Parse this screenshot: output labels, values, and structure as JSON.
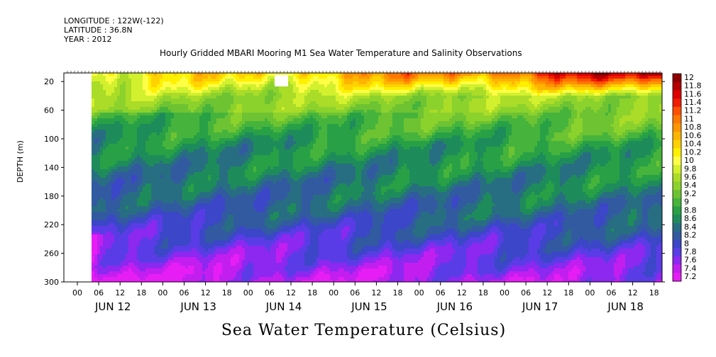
{
  "header": {
    "longitude": "LONGITUDE : 122W(-122)",
    "latitude": "LATITUDE : 36.8N",
    "year": "YEAR : 2012"
  },
  "chart_data": {
    "type": "heatmap",
    "title": "Hourly Gridded MBARI Mooring M1 Sea Water Temperature and Salinity Observations",
    "ylabel": "DEPTH (m)",
    "footer": "Sea Water Temperature (Celsius)",
    "ylim": [
      300,
      0
    ],
    "y_ticks": [
      20,
      60,
      100,
      140,
      180,
      220,
      260,
      300
    ],
    "x_hour_ticks": [
      "00",
      "06",
      "12",
      "18",
      "00",
      "06",
      "12",
      "18",
      "00",
      "06",
      "12",
      "18",
      "00",
      "06",
      "12",
      "18",
      "00",
      "06",
      "12",
      "18",
      "00",
      "06",
      "12",
      "18",
      "00",
      "06",
      "12",
      "18"
    ],
    "x_day_labels": [
      "JUN 12",
      "JUN 13",
      "JUN 14",
      "JUN 15",
      "JUN 16",
      "JUN 17",
      "JUN 18"
    ],
    "colorbar": {
      "levels": [
        12,
        11.8,
        11.6,
        11.4,
        11.2,
        11,
        10.8,
        10.6,
        10.4,
        10.2,
        10,
        9.8,
        9.6,
        9.4,
        9.2,
        9,
        8.8,
        8.6,
        8.4,
        8.2,
        8,
        7.8,
        7.6,
        7.4,
        7.2
      ],
      "colors": [
        "#8c0000",
        "#b40000",
        "#dc0000",
        "#f01e00",
        "#ff5000",
        "#ff7800",
        "#ff9600",
        "#ffb400",
        "#ffd200",
        "#fff000",
        "#ffff46",
        "#d2f02d",
        "#aadc28",
        "#8cd22d",
        "#6ec332",
        "#46b43c",
        "#28a046",
        "#1e8c5a",
        "#286e82",
        "#325aa0",
        "#3c46c8",
        "#5a3ce6",
        "#8c28f0",
        "#c31ef0",
        "#e61ef5"
      ]
    },
    "grid": false,
    "notes_on_series": [
      {
        "depth": 10,
        "start_temp": 10.2,
        "end_temp": 11.8
      },
      {
        "depth": 50,
        "temp": 9.4
      },
      {
        "depth": 100,
        "temp": 8.9
      },
      {
        "depth": 180,
        "temp": 8.5
      },
      {
        "depth": 260,
        "temp": 8.0
      },
      {
        "depth": 295,
        "temp": 7.6
      }
    ]
  }
}
